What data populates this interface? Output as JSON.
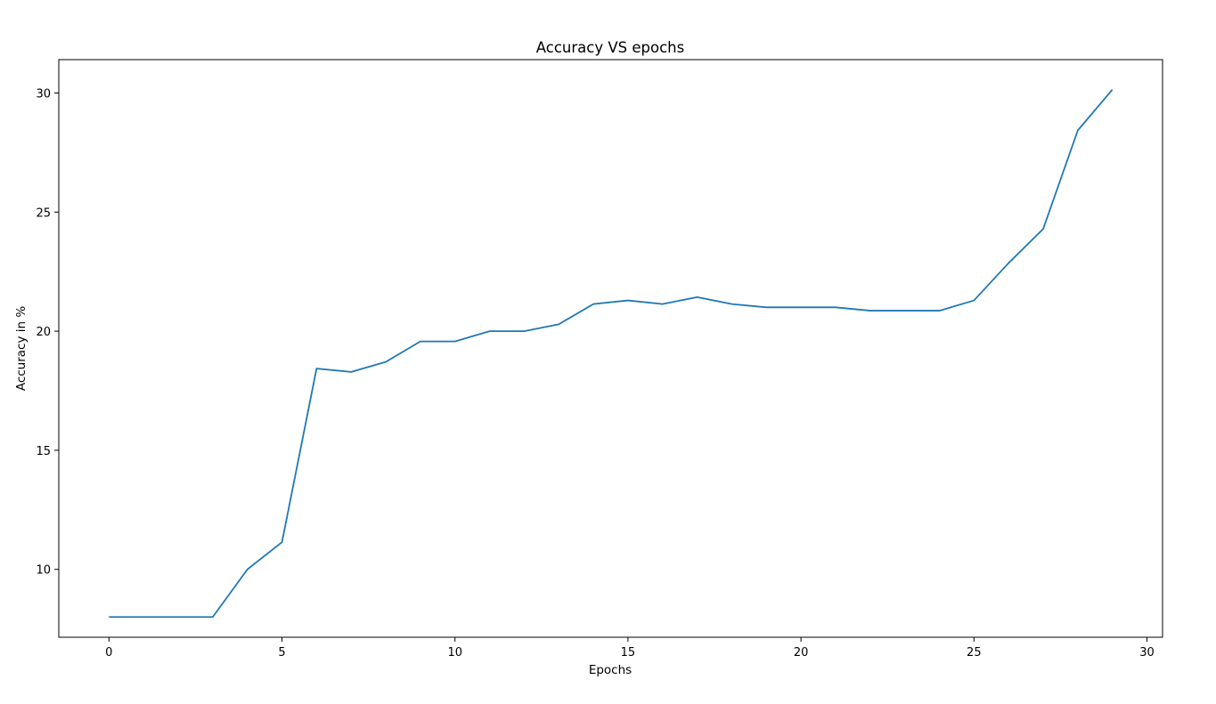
{
  "chart_data": {
    "type": "line",
    "title": "Accuracy VS epochs",
    "xlabel": "Epochs",
    "ylabel": "Accuracy in %",
    "xlim": [
      -1.45,
      30.45
    ],
    "ylim": [
      7.15,
      31.4
    ],
    "xticks": [
      0,
      5,
      10,
      15,
      20,
      25,
      30
    ],
    "yticks": [
      10,
      15,
      20,
      25,
      30
    ],
    "grid": false,
    "legend": "none",
    "series": [
      {
        "color": "#1f77b4",
        "x": [
          0,
          1,
          2,
          3,
          4,
          5,
          6,
          7,
          8,
          9,
          10,
          11,
          12,
          13,
          14,
          15,
          16,
          17,
          18,
          19,
          20,
          21,
          22,
          23,
          24,
          25,
          26,
          27,
          28,
          29
        ],
        "y": [
          8.0,
          8.0,
          8.0,
          8.0,
          10.0,
          11.14,
          18.43,
          18.29,
          18.71,
          19.57,
          19.57,
          20.0,
          20.0,
          20.29,
          21.14,
          21.29,
          21.14,
          21.43,
          21.14,
          21.0,
          21.0,
          21.0,
          20.86,
          20.86,
          20.86,
          21.29,
          22.86,
          24.29,
          28.43,
          30.14
        ]
      }
    ]
  }
}
